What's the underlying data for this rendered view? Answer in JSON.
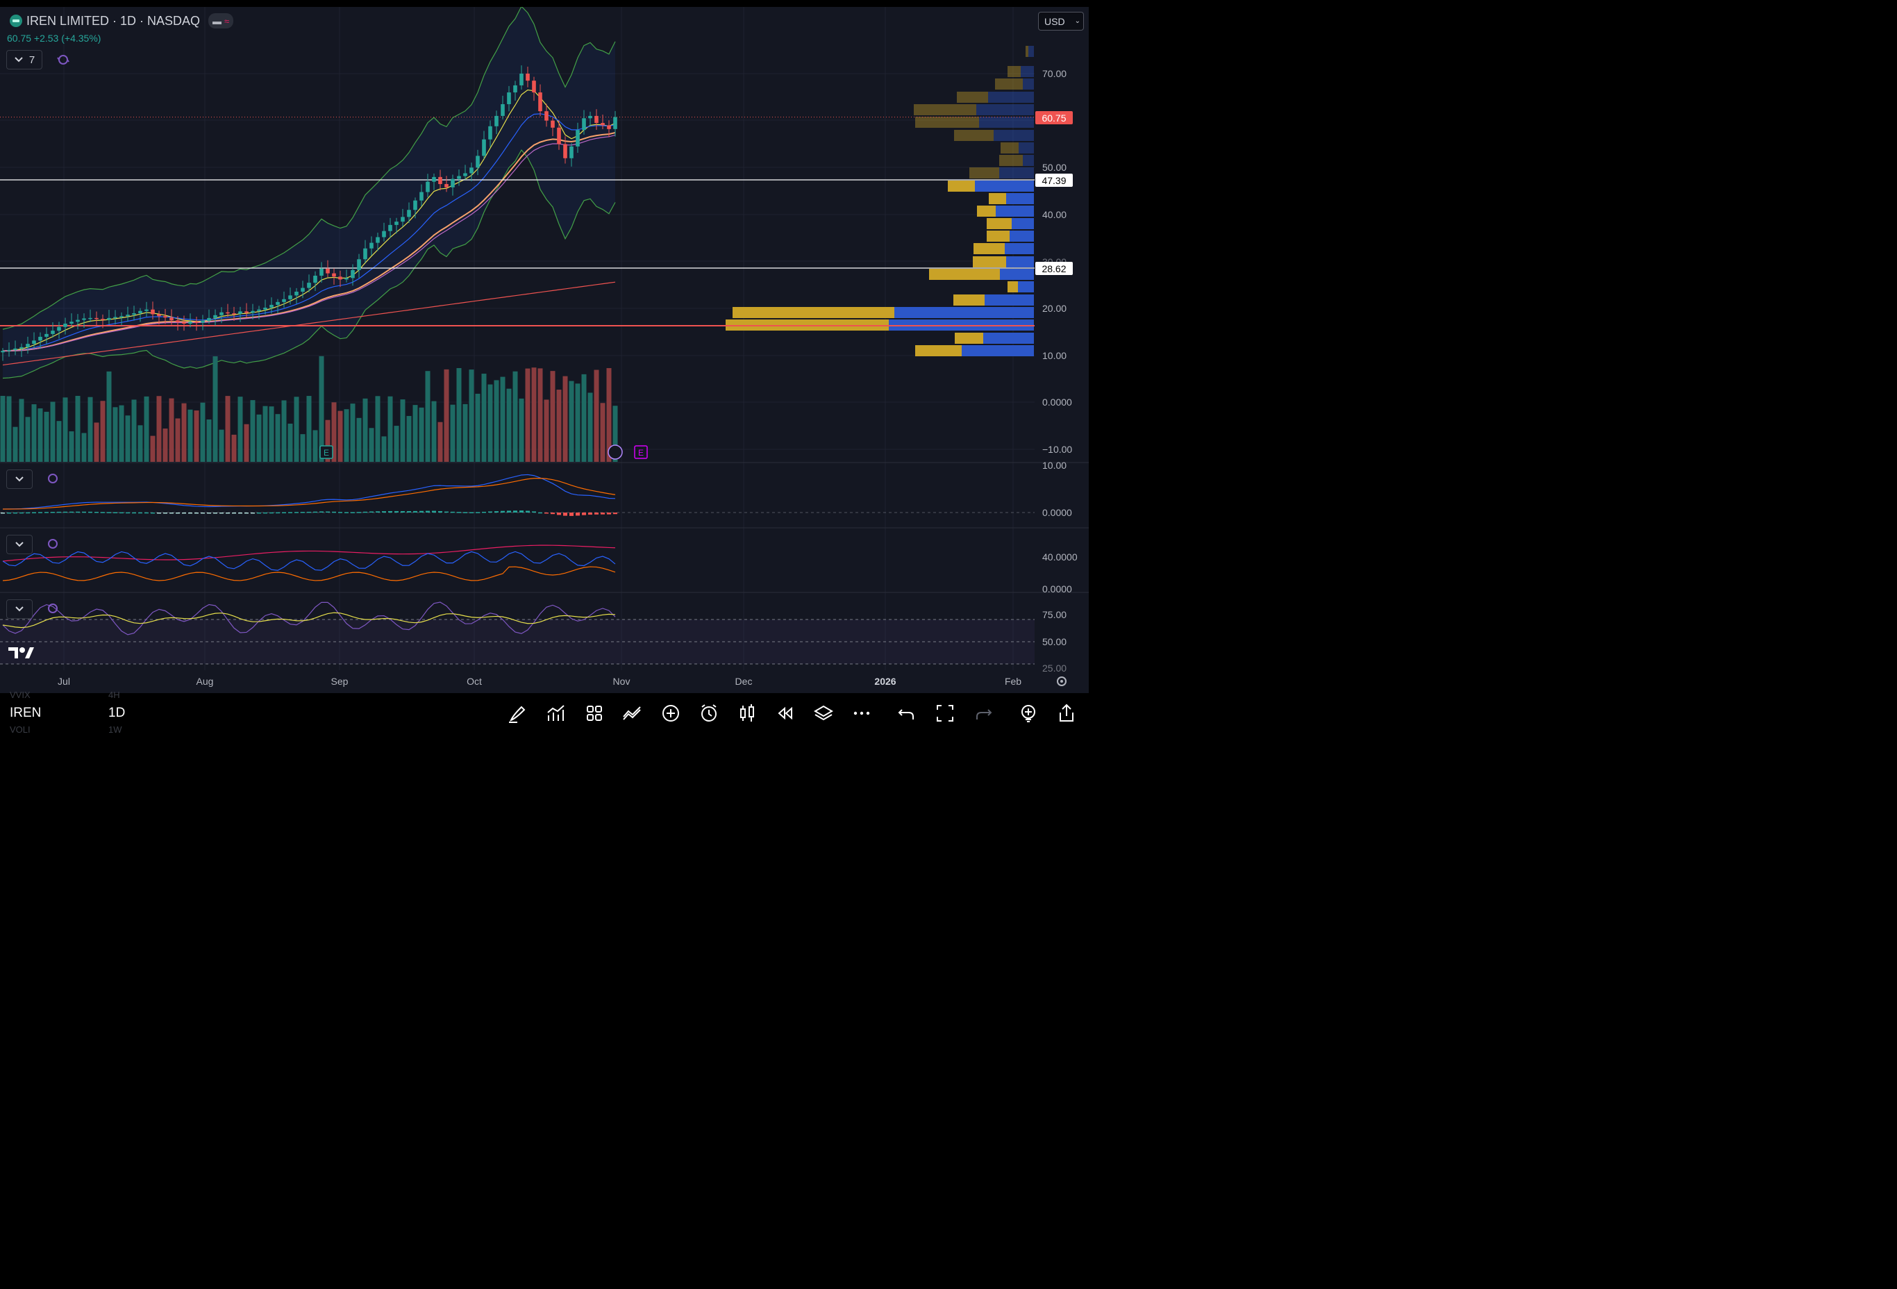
{
  "header": {
    "title": "IREN LIMITED · 1D · NASDAQ",
    "quote": "60.75 +2.53 (+4.35%)",
    "indicators_count": "7",
    "currency": "USD"
  },
  "price_axis": {
    "labels": [
      "70.00",
      "50.00",
      "40.00",
      "30.00",
      "20.00",
      "10.00",
      "0.0000",
      "−10.00"
    ],
    "current_price_badge": "60.75",
    "line_badges": [
      "47.39",
      "28.62"
    ]
  },
  "macd_axis": [
    "10.00",
    "0.0000"
  ],
  "dmi_axis": [
    "40.0000",
    "0.0000"
  ],
  "rsi_axis": [
    "75.00",
    "50.00",
    "25.00"
  ],
  "time_axis": [
    "Jul",
    "Aug",
    "Sep",
    "Oct",
    "Nov",
    "Dec",
    "2026",
    "Feb"
  ],
  "event_markers": {
    "earnings_label": "E"
  },
  "toolbar": {
    "symbol": "IREN",
    "interval": "1D",
    "ghost_symbols": [
      "VVIX",
      "VOLI"
    ],
    "ghost_intervals": [
      "4H",
      "1W"
    ],
    "icons": [
      "brush-icon",
      "indicators-icon",
      "templates-icon",
      "compare-icon",
      "add-icon",
      "alert-icon",
      "candle-style-icon",
      "replay-icon",
      "layers-icon",
      "more-icon",
      "undo-icon",
      "fullscreen-icon",
      "redo-icon",
      "add-watchlist-icon",
      "share-icon"
    ]
  },
  "colors": {
    "bg": "#141722",
    "up": "#26a69a",
    "down": "#ef5350",
    "vp_up": "#2c57c9",
    "vp_down": "#c9a227",
    "macd_line": "#2962ff",
    "signal_line": "#ff6d00",
    "rsi_line": "#7e57c2"
  },
  "chart_data": {
    "type": "candlestick",
    "symbol": "IREN",
    "interval": "1D",
    "ylim": [
      -14,
      76
    ],
    "x": [
      "Jul",
      "Aug",
      "Sep",
      "Oct",
      "Nov",
      "Dec",
      "2026",
      "Feb"
    ],
    "last_close": 60.75,
    "change": 2.53,
    "change_pct": 4.35,
    "horizontal_lines": [
      47.39,
      28.62,
      16.2
    ],
    "price_series": [
      11.0,
      11.2,
      11.5,
      11.8,
      12.5,
      13.2,
      14.0,
      14.6,
      15.3,
      16.1,
      16.8,
      17.2,
      17.6,
      17.9,
      18.0,
      17.8,
      17.6,
      18.0,
      18.2,
      18.4,
      18.7,
      19.0,
      19.5,
      19.8,
      18.8,
      18.4,
      18.1,
      17.5,
      17.1,
      16.8,
      17.2,
      17.0,
      17.4,
      18.0,
      18.6,
      19.2,
      19.0,
      18.9,
      19.4,
      19.1,
      19.5,
      19.8,
      20.2,
      20.8,
      21.4,
      22.0,
      22.8,
      23.6,
      24.4,
      25.5,
      27.0,
      28.5,
      27.5,
      26.8,
      26.2,
      26.5,
      28.2,
      30.5,
      32.8,
      34.0,
      35.2,
      36.5,
      37.8,
      38.5,
      39.5,
      41.0,
      43.0,
      44.8,
      47.0,
      48.0,
      46.5,
      45.8,
      47.6,
      48.2,
      48.8,
      50.0,
      52.5,
      56.0,
      58.8,
      61.0,
      63.5,
      66.0,
      67.5,
      70.0,
      68.5,
      66.0,
      62.0,
      60.0,
      58.5,
      55.0,
      52.0,
      54.5,
      58.0,
      60.5,
      61.0,
      59.5,
      59.0,
      58.2,
      60.75
    ],
    "volume_hist_range": [
      -14,
      5
    ]
  }
}
